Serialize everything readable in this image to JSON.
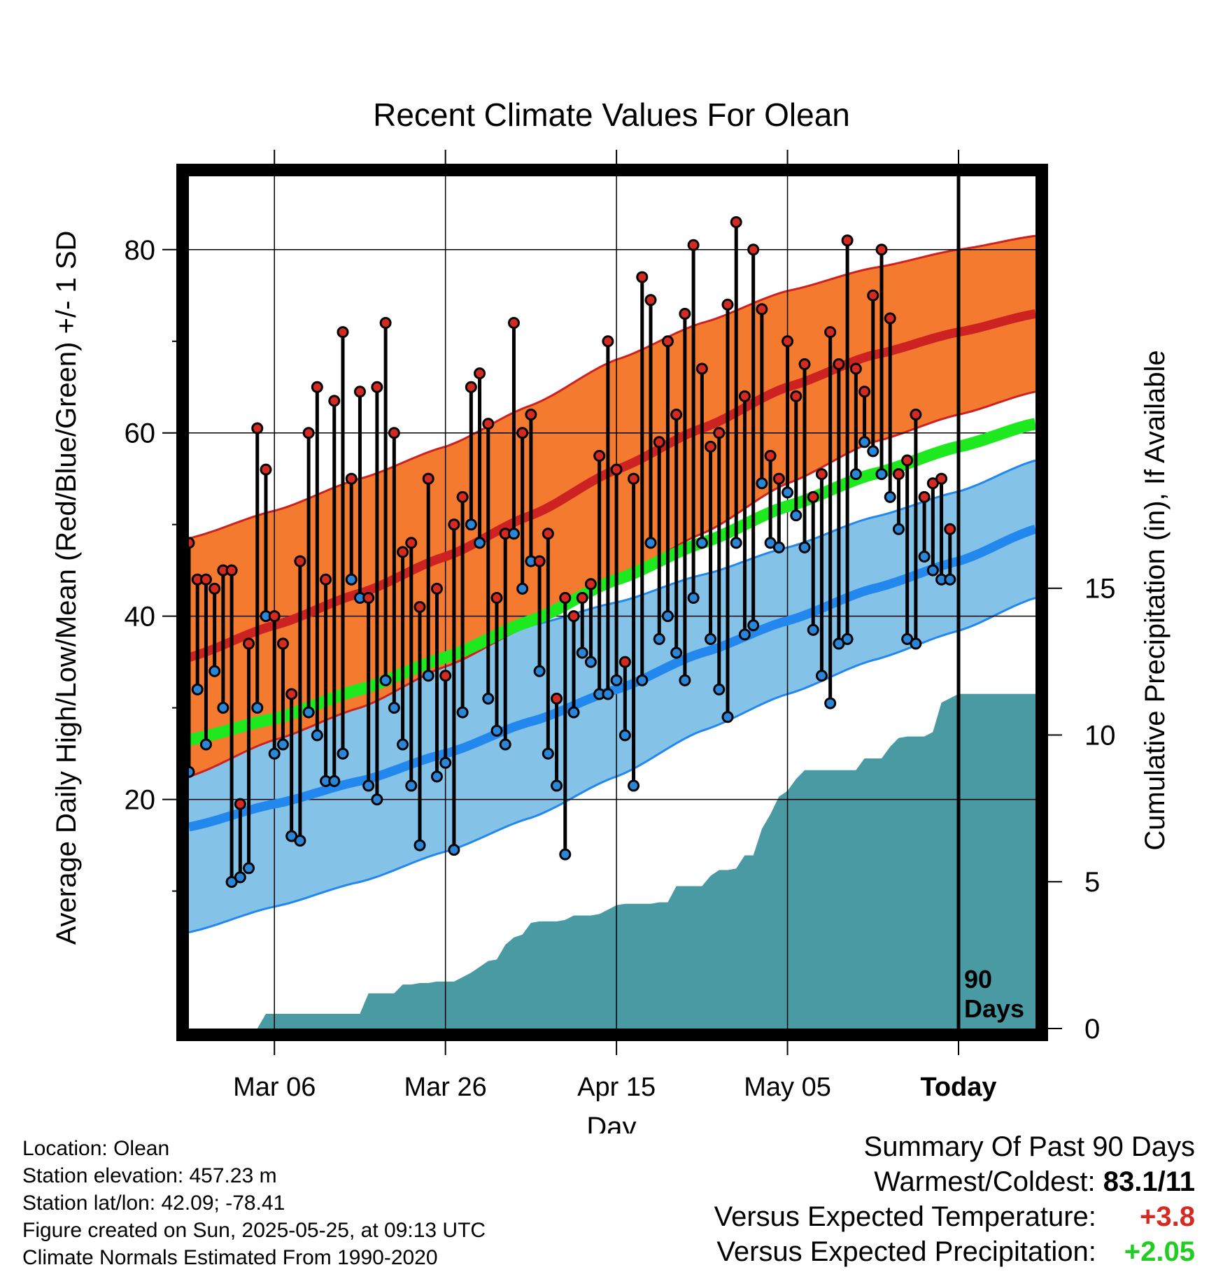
{
  "chart_data": {
    "type": "line",
    "title": "Recent Climate Values For Olean",
    "xlabel": "Day",
    "ylabel": "Average Daily High/Low/Mean (Red/Blue/Green) +/- 1 SD",
    "y2label": "Cumulative Precipitation (in), If Available",
    "xlim": [
      "2025-02-24",
      "2025-06-03"
    ],
    "ylim": [
      -5,
      88
    ],
    "y2lim": [
      0,
      18
    ],
    "yticks": [
      20,
      40,
      60,
      80
    ],
    "yticks_minor": [
      10,
      30,
      50,
      70
    ],
    "y2ticks": [
      0,
      5,
      10,
      15
    ],
    "xticks": [
      "Mar 06",
      "Mar 26",
      "Apr 15",
      "May 05",
      "Today"
    ],
    "xtick_dates": [
      "2025-03-06",
      "2025-03-26",
      "2025-04-15",
      "2025-05-05",
      "2025-05-25"
    ],
    "today_marker_label": "90 Days",
    "grid": true,
    "colors": {
      "high_band": "#f47a30",
      "high_mean": "#cc2222",
      "low_band": "#84c2e8",
      "low_mean": "#2288ee",
      "mean": "#1ee81e",
      "precip": "#4a9aa4",
      "high_point": "#d42a22",
      "low_point": "#2a86d8"
    },
    "normals_dates": [
      "2025-02-24",
      "2025-03-06",
      "2025-03-16",
      "2025-03-26",
      "2025-04-05",
      "2025-04-15",
      "2025-04-25",
      "2025-05-05",
      "2025-05-15",
      "2025-05-25",
      "2025-06-03"
    ],
    "normal_high": [
      35.5,
      39,
      42.5,
      46.5,
      51,
      56,
      60.5,
      65,
      68.5,
      71,
      73
    ],
    "normal_high_sd": [
      13,
      12.5,
      12.5,
      12,
      12,
      12,
      11.5,
      10.5,
      9.5,
      9,
      8.5
    ],
    "normal_low": [
      17,
      19.5,
      22,
      25,
      28.5,
      32,
      36,
      39.5,
      43,
      46,
      49.5
    ],
    "normal_low_sd": [
      11.5,
      11.2,
      11,
      10.7,
      10.5,
      9.5,
      8.5,
      8,
      7.8,
      7.6,
      7.5
    ],
    "normal_mean": [
      26.5,
      28.8,
      32,
      35.5,
      39.5,
      44,
      48,
      52,
      55.5,
      58.5,
      61
    ],
    "high_temps": [
      48,
      44,
      44,
      43,
      45,
      45,
      19.5,
      37,
      60.5,
      56,
      40,
      37,
      31.5,
      46,
      60,
      65,
      44,
      63.5,
      71,
      55,
      64.5,
      42,
      65,
      72,
      60,
      47,
      48,
      41,
      55,
      43,
      33.5,
      50,
      53,
      65,
      66.5,
      61,
      42,
      49,
      72,
      60,
      62,
      46,
      49,
      31,
      42,
      40,
      42,
      43.5,
      57.5,
      70,
      56,
      35,
      55,
      77,
      74.5,
      59,
      70,
      62,
      73,
      80.5,
      67,
      58.5,
      60,
      74,
      83,
      64,
      80,
      73.5,
      57.5,
      55,
      70,
      64,
      67.5,
      53,
      55.5,
      71,
      67.5,
      81,
      67,
      64.5,
      75,
      80,
      72.5,
      55.5,
      57,
      62,
      53,
      54.5,
      55,
      49.5
    ],
    "low_temps": [
      23,
      32,
      26,
      34,
      30,
      11,
      11.5,
      12.5,
      30,
      40,
      25,
      26,
      16,
      15.5,
      29.5,
      27,
      22,
      22,
      25,
      44,
      42,
      21.5,
      20,
      33,
      30,
      26,
      21.5,
      15,
      33.5,
      22.5,
      24,
      14.5,
      29.5,
      50,
      48,
      31,
      27.5,
      26,
      49,
      43,
      46,
      34,
      25,
      21.5,
      14,
      29.5,
      36,
      35,
      31.5,
      31.5,
      33,
      27,
      21.5,
      33,
      48,
      37.5,
      40,
      36,
      33,
      42,
      48,
      37.5,
      32,
      29,
      48,
      38,
      39,
      54.5,
      48,
      47.5,
      53.5,
      51,
      47.5,
      38.5,
      33.5,
      30.5,
      37,
      37.5,
      55.5,
      59,
      58,
      55.5,
      53,
      49.5,
      37.5,
      37,
      46.5,
      45,
      44,
      44
    ],
    "precip_cumulative": [
      0,
      0,
      0,
      0,
      0,
      0,
      0,
      0,
      0,
      0.5,
      0.5,
      0.5,
      0.5,
      0.5,
      0.5,
      0.5,
      0.5,
      0.5,
      0.5,
      0.5,
      0.5,
      1.2,
      1.2,
      1.2,
      1.2,
      1.5,
      1.5,
      1.55,
      1.55,
      1.6,
      1.6,
      1.6,
      1.75,
      1.9,
      2.1,
      2.3,
      2.35,
      2.85,
      3.1,
      3.2,
      3.6,
      3.65,
      3.65,
      3.65,
      3.7,
      3.85,
      3.85,
      3.85,
      3.9,
      4.05,
      4.2,
      4.25,
      4.25,
      4.25,
      4.25,
      4.3,
      4.3,
      4.85,
      4.85,
      4.85,
      4.85,
      5.2,
      5.4,
      5.4,
      5.45,
      5.9,
      5.9,
      6.8,
      7.3,
      7.9,
      8.1,
      8.5,
      8.8,
      8.8,
      8.8,
      8.8,
      8.8,
      8.8,
      8.8,
      9.2,
      9.2,
      9.2,
      9.6,
      9.9,
      9.95,
      9.95,
      9.95,
      10.1,
      11.1,
      11.25,
      11.4
    ],
    "precip_cumulative_today": 11.4
  },
  "info": {
    "location": "Location: Olean",
    "elevation": "Station elevation: 457.23 m",
    "latlon": "Station lat/lon: 42.09; -78.41",
    "created": "Figure created on Sun, 2025-05-25, at 09:13 UTC",
    "normals": "Climate Normals Estimated From 1990-2020"
  },
  "summary": {
    "heading": "Summary Of Past 90 Days",
    "warm_cold_label": "Warmest/Coldest:",
    "warm_cold_value": "83.1/11",
    "temp_label": "Versus Expected Temperature:",
    "temp_value": "+3.8",
    "temp_color": "#d42a22",
    "precip_label": "Versus Expected Precipitation:",
    "precip_value": "+2.05",
    "precip_color": "#22cc22"
  }
}
